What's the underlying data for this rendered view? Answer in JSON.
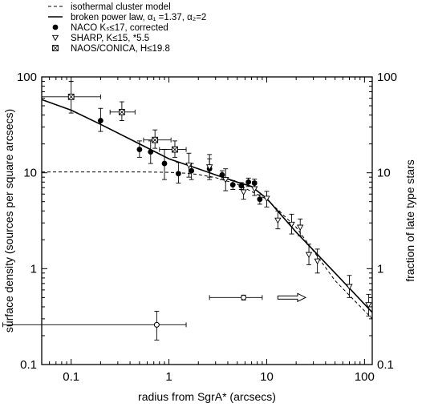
{
  "chart_data": {
    "type": "scatter",
    "xlabel": "radius from SgrA* (arcsecs)",
    "ylabel": "surface density (sources per square arcsecs)",
    "ylabel_right": "fraction of late type stars",
    "xscale": "log",
    "yscale": "log",
    "xlim": [
      0.05,
      120
    ],
    "ylim": [
      0.1,
      100
    ],
    "x_ticks": [
      {
        "value": 0.1,
        "label": "0.1"
      },
      {
        "value": 1,
        "label": "1"
      },
      {
        "value": 10,
        "label": "10"
      },
      {
        "value": 100,
        "label": "100"
      }
    ],
    "y_ticks": [
      {
        "value": 0.1,
        "label": "0.1"
      },
      {
        "value": 1,
        "label": "1"
      },
      {
        "value": 10,
        "label": "10"
      },
      {
        "value": 100,
        "label": "100"
      }
    ],
    "legend": [
      {
        "marker": "dashed-line",
        "label": "isothermal cluster model"
      },
      {
        "marker": "solid-line",
        "label": "broken power law, α₁ =1.37, α₂=2"
      },
      {
        "marker": "filled-circle",
        "label": "NACO Kₛ≤17, corrected"
      },
      {
        "marker": "open-triangle",
        "label": "SHARP, K≤15, *5.5"
      },
      {
        "marker": "crossed-square",
        "label": "NAOS/CONICA, H≤19.8"
      }
    ],
    "series": [
      {
        "name": "isothermal cluster model",
        "style": "dashed",
        "x": [
          0.05,
          0.5,
          1,
          1.5,
          2,
          3,
          5,
          10,
          20,
          50,
          120
        ],
        "y": [
          10.2,
          10.2,
          10.1,
          9.9,
          9.6,
          8.9,
          7.6,
          5.3,
          2.7,
          0.75,
          0.3
        ]
      },
      {
        "name": "broken power law, α₁ =1.37, α₂=2",
        "style": "solid",
        "x": [
          0.05,
          0.1,
          0.2,
          0.5,
          1,
          2,
          3,
          5,
          7,
          10,
          20,
          50,
          120
        ],
        "y": [
          58,
          45,
          32,
          20,
          14,
          11,
          9.5,
          8,
          7.2,
          5.4,
          2.4,
          0.9,
          0.35
        ]
      },
      {
        "name": "NACO Kₛ≤17, corrected",
        "marker": "filled-circle",
        "x": [
          0.2,
          0.5,
          0.65,
          0.9,
          1.25,
          1.7,
          2.6,
          3.5,
          4.5,
          5.5,
          6.5,
          7.5,
          8.5
        ],
        "y": [
          35,
          17.5,
          16.5,
          12.5,
          9.8,
          10.5,
          11,
          9.5,
          7.5,
          7.3,
          8,
          7.8,
          5.3
        ],
        "yerr_low": [
          8,
          3,
          4,
          4,
          2,
          2,
          2,
          1,
          0.8,
          0.6,
          0.8,
          0.8,
          0.6
        ],
        "yerr_high": [
          12,
          4,
          5,
          5,
          3,
          2,
          3,
          1,
          0.8,
          0.6,
          0.8,
          0.8,
          0.6
        ]
      },
      {
        "name": "SHARP, K≤15, *5.5",
        "marker": "open-triangle",
        "x": [
          1.6,
          2.6,
          3.8,
          5.8,
          7.5,
          10,
          13,
          18,
          22,
          27,
          33,
          70,
          110
        ],
        "y": [
          12,
          11.5,
          8.5,
          6.3,
          6.8,
          5.4,
          3.2,
          2.9,
          2.7,
          1.4,
          1.2,
          0.65,
          0.42
        ],
        "yerr_low": [
          3,
          3,
          2,
          1,
          1,
          1,
          0.6,
          0.6,
          0.5,
          0.3,
          0.3,
          0.15,
          0.1
        ],
        "yerr_high": [
          4,
          4,
          2.5,
          1.3,
          1.3,
          1,
          0.8,
          0.8,
          0.6,
          0.4,
          0.4,
          0.2,
          0.12
        ]
      },
      {
        "name": "NAOS/CONICA, H≤19.8",
        "marker": "crossed-square",
        "x": [
          0.1,
          0.33,
          0.72,
          1.15
        ],
        "y": [
          62,
          43,
          22,
          17.5
        ],
        "yerr_low": [
          20,
          8,
          4,
          3
        ],
        "yerr_high": [
          28,
          12,
          6,
          4
        ],
        "xerr_low": [
          0.05,
          0.08,
          0.17,
          0.35
        ],
        "xerr_high": [
          0.1,
          0.12,
          0.33,
          0.35
        ]
      },
      {
        "name": "",
        "marker": "open-circle",
        "x": [
          0.75,
          5.8
        ],
        "y": [
          0.26,
          0.5
        ],
        "yerr_low": [
          0.08,
          0.03
        ],
        "yerr_high": [
          0.1,
          0.03
        ],
        "xerr_low": [
          0.73,
          3.2
        ],
        "xerr_high": [
          0.75,
          3.2
        ]
      }
    ],
    "annotations": [
      {
        "type": "arrow",
        "direction": "right",
        "x_start": 13,
        "x_end": 25,
        "y": 0.5
      }
    ]
  }
}
